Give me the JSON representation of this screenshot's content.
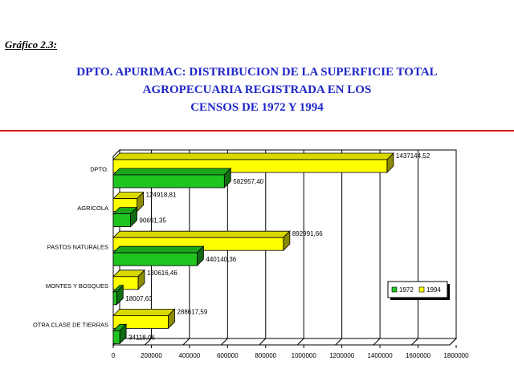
{
  "caption": "Gráfico 2.3:",
  "title_lines": [
    "DPTO. APURIMAC: DISTRIBUCION DE LA SUPERFICIE TOTAL",
    "AGROPECUARIA REGISTRADA EN LOS",
    "CENSOS DE 1972 Y 1994"
  ],
  "colors": {
    "title": "#1f27c8",
    "rule": "#d31d1d",
    "s1972": "#1fc41f",
    "s1994": "#ffff00"
  },
  "chart_data": {
    "type": "bar",
    "orientation": "horizontal",
    "title": "DPTO. APURIMAC: DISTRIBUCION DE LA SUPERFICIE TOTAL AGROPECUARIA REGISTRADA EN LOS CENSOS DE 1972 Y 1994",
    "categories": [
      "DPTO.",
      "AGRICOLA",
      "PASTOS NATURALES",
      "MONTES Y BOSQUES",
      "OTRA CLASE DE TIERRAS"
    ],
    "series": [
      {
        "name": "1972",
        "values": [
          582957.4,
          90691.35,
          440140.36,
          18007.63,
          34118.06
        ],
        "labels": [
          "582957,40",
          "90691,35",
          "440140,36",
          "18007,63",
          "34118,06"
        ]
      },
      {
        "name": "1994",
        "values": [
          1437144.52,
          124918.81,
          892991.66,
          130616.46,
          288617.59
        ],
        "labels": [
          "1437144,52",
          "124918,81",
          "892991,66",
          "130616,46",
          "288617,59"
        ]
      }
    ],
    "xlim": [
      0,
      1800000
    ],
    "xticks": [
      "0",
      "200000",
      "400000",
      "600000",
      "800000",
      "1000000",
      "1200000",
      "1400000",
      "1600000",
      "1800000"
    ],
    "grid": true,
    "legend_position": "right"
  }
}
